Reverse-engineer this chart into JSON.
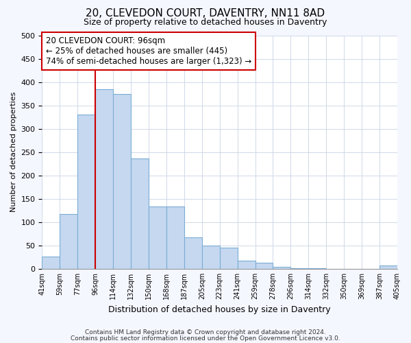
{
  "title1": "20, CLEVEDON COURT, DAVENTRY, NN11 8AD",
  "title2": "Size of property relative to detached houses in Daventry",
  "xlabel": "Distribution of detached houses by size in Daventry",
  "ylabel": "Number of detached properties",
  "bar_values": [
    27,
    117,
    330,
    385,
    375,
    237,
    133,
    133,
    68,
    50,
    45,
    18,
    13,
    5,
    2,
    2,
    0,
    0,
    0,
    7
  ],
  "bar_labels": [
    "41sqm",
    "59sqm",
    "77sqm",
    "96sqm",
    "114sqm",
    "132sqm",
    "150sqm",
    "168sqm",
    "187sqm",
    "205sqm",
    "223sqm",
    "241sqm",
    "259sqm",
    "278sqm",
    "296sqm",
    "314sqm",
    "332sqm",
    "350sqm",
    "369sqm",
    "387sqm",
    "405sqm"
  ],
  "bar_color": "#c5d8f0",
  "bar_edge_color": "#7badd4",
  "vline_color": "#cc0000",
  "annotation_line1": "20 CLEVEDON COURT: 96sqm",
  "annotation_line2": "← 25% of detached houses are smaller (445)",
  "annotation_line3": "74% of semi-detached houses are larger (1,323) →",
  "annotation_box_color": "#cc0000",
  "ylim": [
    0,
    500
  ],
  "yticks": [
    0,
    50,
    100,
    150,
    200,
    250,
    300,
    350,
    400,
    450,
    500
  ],
  "footnote1": "Contains HM Land Registry data © Crown copyright and database right 2024.",
  "footnote2": "Contains public sector information licensed under the Open Government Licence v3.0.",
  "bg_color": "#f5f7ff",
  "plot_bg_color": "#ffffff",
  "grid_color": "#d0d8e8",
  "title1_fontsize": 11,
  "title2_fontsize": 9,
  "xlabel_fontsize": 9,
  "ylabel_fontsize": 8,
  "ytick_fontsize": 8,
  "xtick_fontsize": 7,
  "footnote_fontsize": 6.5,
  "vline_x_index": 3
}
